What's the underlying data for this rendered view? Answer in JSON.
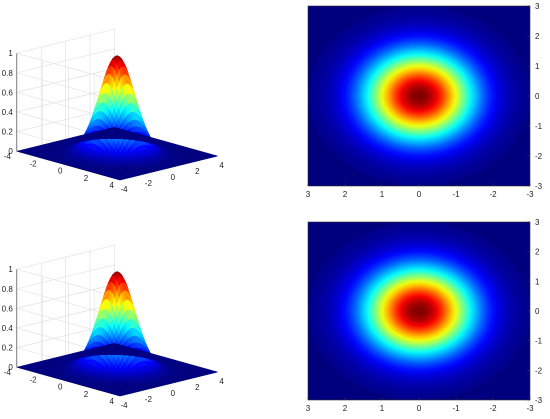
{
  "chart_data": [
    {
      "type": "surface",
      "function": "exp(-(x^2+y^2)/2)",
      "x_ticks": [
        "-4",
        "-2",
        "0",
        "2",
        "4"
      ],
      "y_ticks": [
        "-4",
        "-2",
        "0",
        "2",
        "4"
      ],
      "z_ticks": [
        "0",
        "0.2",
        "0.4",
        "0.6",
        "0.8",
        "1"
      ],
      "xlim": [
        -4,
        4
      ],
      "ylim": [
        -4,
        4
      ],
      "zlim": [
        0,
        1
      ],
      "colormap": [
        "#00007f",
        "#0000ff",
        "#0080ff",
        "#00ffff",
        "#80ff80",
        "#ffff00",
        "#ff8000",
        "#ff0000",
        "#7f0000"
      ],
      "grid": true
    },
    {
      "type": "heatmap",
      "function": "exp(-(x^2+y^2)/2)",
      "x_ticks": [
        "3",
        "2",
        "1",
        "0",
        "-1",
        "-2",
        "-3"
      ],
      "y_ticks": [
        "3",
        "2",
        "1",
        "0",
        "-1",
        "-2",
        "-3"
      ],
      "xlim": [
        3,
        -3
      ],
      "ylim": [
        -3,
        3
      ],
      "colormap": [
        "#00007f",
        "#0000ff",
        "#0080ff",
        "#00ffff",
        "#80ff80",
        "#ffff00",
        "#ff8000",
        "#ff0000",
        "#7f0000"
      ]
    },
    {
      "type": "surface",
      "function": "exp(-(x^2+y^2)/2)",
      "x_ticks": [
        "-4",
        "-2",
        "0",
        "2",
        "4"
      ],
      "y_ticks": [
        "-4",
        "-2",
        "0",
        "2",
        "4"
      ],
      "z_ticks": [
        "0",
        "0.2",
        "0.4",
        "0.6",
        "0.8",
        "1"
      ],
      "xlim": [
        -4,
        4
      ],
      "ylim": [
        -4,
        4
      ],
      "zlim": [
        0,
        1
      ],
      "colormap": [
        "#00007f",
        "#0000ff",
        "#0080ff",
        "#00ffff",
        "#80ff80",
        "#ffff00",
        "#ff8000",
        "#ff0000",
        "#7f0000"
      ],
      "grid": true
    },
    {
      "type": "heatmap",
      "function": "exp(-(x^2+y^2)/2)",
      "x_ticks": [
        "3",
        "2",
        "1",
        "0",
        "-1",
        "-2",
        "-3"
      ],
      "y_ticks": [
        "3",
        "2",
        "1",
        "0",
        "-1",
        "-2",
        "-3"
      ],
      "xlim": [
        3,
        -3
      ],
      "ylim": [
        -3,
        3
      ],
      "colormap": [
        "#00007f",
        "#0000ff",
        "#0080ff",
        "#00ffff",
        "#80ff80",
        "#ffff00",
        "#ff8000",
        "#ff0000",
        "#7f0000"
      ]
    }
  ]
}
